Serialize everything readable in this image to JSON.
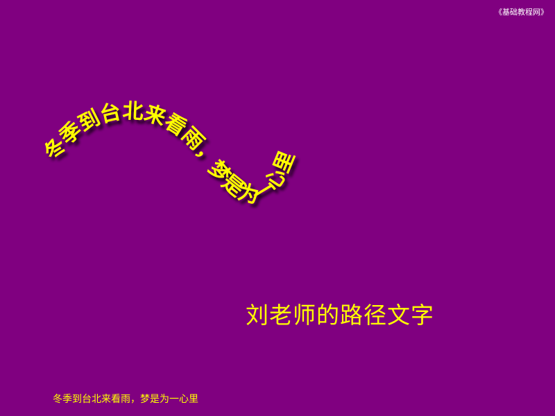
{
  "watermark": "《基础教程网》",
  "curved_text": "冬季到台北来看雨，梦是为一心里",
  "title": "刘老师的路径文字",
  "caption": "冬季到台北来看雨，梦是为一心里",
  "colors": {
    "background": "#800080",
    "text": "#ffff00",
    "watermark": "#ffffff",
    "shadow": "#2a002a"
  }
}
